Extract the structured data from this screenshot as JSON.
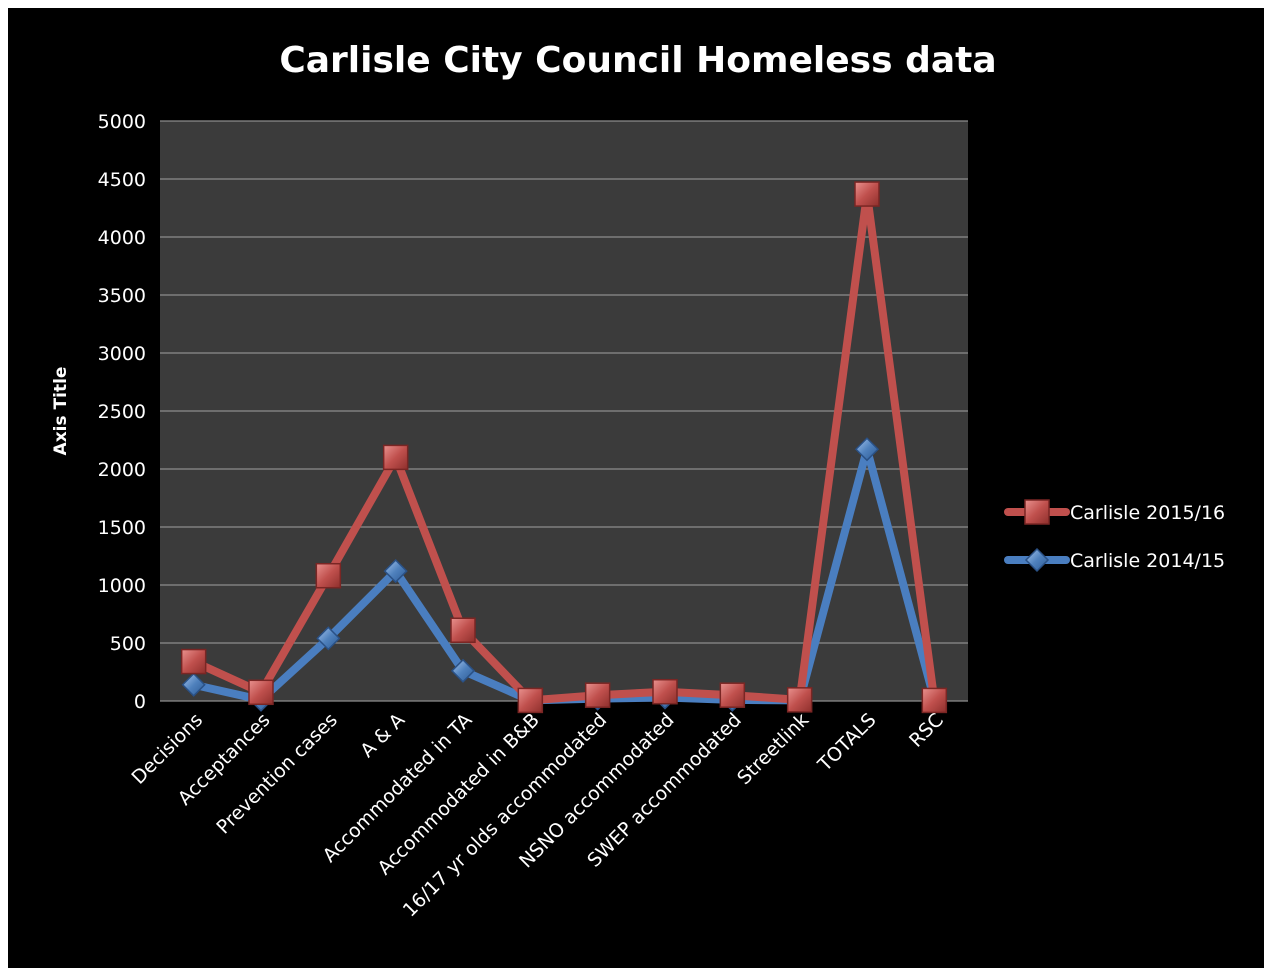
{
  "chart_data": {
    "type": "line",
    "title": "Carlisle City Council Homeless data",
    "ylabel": "Axis Title",
    "xlabel": "",
    "ylim": [
      0,
      5000
    ],
    "yticks": [
      0,
      500,
      1000,
      1500,
      2000,
      2500,
      3000,
      3500,
      4000,
      4500,
      5000
    ],
    "categories": [
      "Decisions",
      "Acceptances",
      "Prevention cases",
      "A & A",
      "Accommodated in TA",
      "Accommodated in B&B",
      "16/17 yr olds accommodated",
      "NSNO accommodated",
      "SWEP accommodated",
      "Streetlink",
      "TOTALS",
      "RSC"
    ],
    "series": [
      {
        "name": "Carlisle 2014/15",
        "color": "#4a7ec0",
        "marker": "diamond",
        "values": [
          140,
          10,
          540,
          1120,
          260,
          5,
          20,
          30,
          10,
          5,
          2170,
          10
        ]
      },
      {
        "name": "Carlisle 2015/16",
        "color": "#c0504d",
        "marker": "square",
        "values": [
          340,
          75,
          1080,
          2100,
          610,
          5,
          50,
          80,
          50,
          10,
          4370,
          5
        ]
      }
    ],
    "legend": {
      "position": "right",
      "order": [
        "Carlisle 2015/16",
        "Carlisle 2014/15"
      ]
    },
    "grid": true,
    "plot_background": "#3b3b3b",
    "background": "#000000",
    "gridline_color": "#8c8c8c"
  }
}
